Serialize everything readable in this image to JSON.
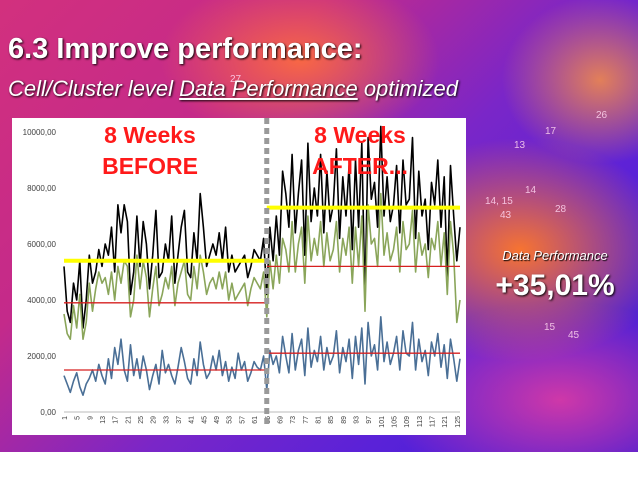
{
  "slide": {
    "title": "6.3  Improve performance:",
    "subtitle_prefix": "Cell/Cluster level ",
    "subtitle_underlined": "Data Performance",
    "subtitle_suffix": " optimized",
    "before_line1": "8 Weeks",
    "before_line2": "BEFORE",
    "after_line1": "8 Weeks",
    "after_line2": "AFTER...",
    "metric_label": "Data Performance",
    "metric_value": "+35,01%",
    "background_numbers": [
      "27",
      "17",
      "13",
      "14",
      "28",
      "14, 15",
      "43",
      "15",
      "45",
      "26"
    ]
  },
  "chart_data": {
    "type": "line",
    "ylim": [
      0,
      10000
    ],
    "yticks": [
      "0,00",
      "2000,00",
      "4000,00",
      "6000,00",
      "8000,00",
      "10000,00"
    ],
    "x_ticks": [
      1,
      5,
      9,
      13,
      17,
      21,
      25,
      29,
      33,
      37,
      41,
      45,
      49,
      53,
      57,
      61,
      65,
      69,
      73,
      77,
      81,
      85,
      89,
      93,
      97,
      101,
      105,
      109,
      113,
      117,
      121,
      125
    ],
    "n_points": 126,
    "split_index": 64,
    "series": [
      {
        "color": "#000000",
        "values": [
          5200,
          3600,
          3200,
          4600,
          4000,
          5400,
          3000,
          4000,
          5600,
          4600,
          5000,
          5800,
          5200,
          6000,
          5600,
          6600,
          5000,
          7400,
          6400,
          7400,
          6800,
          4200,
          5000,
          7000,
          5200,
          6800,
          6000,
          4400,
          5600,
          7200,
          4800,
          5000,
          6000,
          5400,
          7000,
          4600,
          5600,
          6600,
          7200,
          5000,
          4800,
          6400,
          5400,
          7800,
          6600,
          5200,
          5600,
          6000,
          5600,
          6400,
          5400,
          6600,
          5000,
          5600,
          5000,
          5200,
          5400,
          5600,
          4800,
          5200,
          5800,
          5600,
          5400,
          6200,
          4200,
          6600,
          5400,
          7000,
          5600,
          8600,
          7800,
          6600,
          9200,
          6400,
          7800,
          9000,
          5600,
          9600,
          6800,
          8000,
          7000,
          9200,
          6400,
          8600,
          6800,
          7400,
          9400,
          6200,
          8400,
          7000,
          8800,
          5800,
          9000,
          6600,
          9600,
          4000,
          9800,
          7600,
          8200,
          6600,
          10200,
          7000,
          8400,
          6800,
          7400,
          8800,
          6400,
          9000,
          7400,
          7600,
          9800,
          6200,
          8600,
          7000,
          7600,
          5800,
          8200,
          7400,
          9000,
          6600,
          8400,
          4800,
          8800,
          7000,
          5400,
          6600
        ]
      },
      {
        "color": "#8aa55a",
        "values": [
          3500,
          2800,
          2600,
          3800,
          3000,
          4200,
          2600,
          3200,
          4600,
          3600,
          4400,
          5000,
          4600,
          4800,
          4200,
          5000,
          4000,
          5200,
          4600,
          5400,
          5200,
          3400,
          4000,
          5600,
          4400,
          5400,
          4800,
          3400,
          4400,
          5200,
          3800,
          4200,
          4800,
          4400,
          5200,
          3800,
          4600,
          5000,
          5400,
          4200,
          4000,
          5200,
          4400,
          5600,
          5000,
          4200,
          4600,
          4800,
          4400,
          5000,
          4400,
          5000,
          4000,
          4600,
          4000,
          4200,
          4400,
          4600,
          3800,
          4400,
          4800,
          4600,
          4400,
          5000,
          3400,
          5400,
          4400,
          5600,
          4600,
          6200,
          5800,
          5000,
          6800,
          5000,
          6000,
          6600,
          4600,
          7000,
          5400,
          6200,
          5600,
          6800,
          5200,
          6400,
          5400,
          5800,
          6800,
          5000,
          6200,
          5600,
          6600,
          4600,
          6600,
          5200,
          7000,
          3600,
          7400,
          6000,
          6200,
          5200,
          7800,
          5600,
          6400,
          5400,
          5800,
          6600,
          5000,
          6800,
          5800,
          6000,
          7200,
          5000,
          6400,
          5600,
          6000,
          4800,
          6200,
          5800,
          6800,
          5200,
          6400,
          4200,
          6800,
          5600,
          3200,
          4000
        ]
      },
      {
        "color": "#4a6f96",
        "values": [
          1300,
          1000,
          700,
          1100,
          1400,
          900,
          600,
          1000,
          1200,
          1500,
          1100,
          1700,
          1300,
          1000,
          1900,
          1200,
          2300,
          1700,
          2600,
          1500,
          1100,
          2400,
          1300,
          1900,
          1200,
          2000,
          1500,
          800,
          1300,
          1700,
          1000,
          2200,
          1400,
          1700,
          1300,
          1000,
          1600,
          2300,
          1800,
          1200,
          1000,
          1900,
          1300,
          2500,
          1700,
          1200,
          1400,
          2000,
          1500,
          2200,
          1300,
          1800,
          1100,
          1600,
          1200,
          2100,
          1500,
          1800,
          1100,
          1400,
          1800,
          1600,
          1500,
          2000,
          800,
          2200,
          1700,
          2000,
          1400,
          2700,
          2000,
          1400,
          2800,
          1500,
          2200,
          2600,
          1300,
          3000,
          1600,
          2200,
          1800,
          2700,
          1500,
          2300,
          1700,
          2000,
          2900,
          1400,
          2300,
          1800,
          2600,
          1200,
          2700,
          1700,
          3000,
          1000,
          3200,
          2000,
          2400,
          1500,
          3400,
          1800,
          2500,
          1700,
          2100,
          2700,
          1500,
          2900,
          2100,
          2000,
          3200,
          1500,
          2600,
          1800,
          2200,
          1300,
          2500,
          2000,
          2800,
          1600,
          2400,
          1200,
          2600,
          1900,
          1100,
          1900
        ]
      }
    ],
    "avg_lines": [
      {
        "color": "#ffff00",
        "y": 5400,
        "from": 0,
        "to": 64
      },
      {
        "color": "#ffff00",
        "y": 7300,
        "from": 64,
        "to": 125
      },
      {
        "color": "#d62020",
        "y": 3900,
        "from": 0,
        "to": 64
      },
      {
        "color": "#d62020",
        "y": 5200,
        "from": 64,
        "to": 125
      },
      {
        "color": "#d62020",
        "y": 1500,
        "from": 0,
        "to": 64
      },
      {
        "color": "#d62020",
        "y": 2100,
        "from": 64,
        "to": 125
      }
    ],
    "split_line_color": "#999999"
  }
}
